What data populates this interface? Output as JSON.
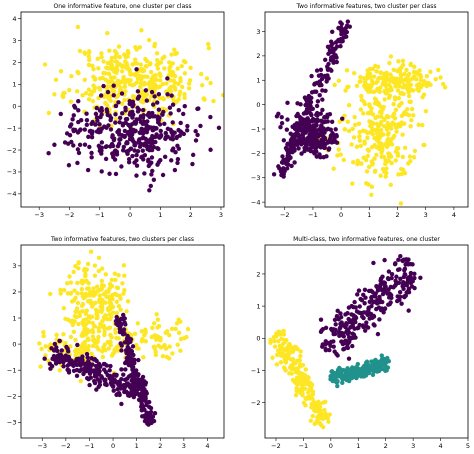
{
  "colors": {
    "dark_purple": "#440154",
    "teal": "#21918c",
    "yellow": "#fde725"
  },
  "chart_data": [
    {
      "type": "scatter",
      "title": "One informative feature, one cluster per class",
      "xlim": [
        -3.6,
        3.1
      ],
      "ylim": [
        -4.6,
        4.3
      ],
      "xticks": [
        -3,
        -2,
        -1,
        0,
        1,
        2,
        3
      ],
      "yticks": [
        -4,
        -3,
        -2,
        -1,
        0,
        1,
        2,
        3,
        4
      ],
      "seed": 11,
      "series": [
        {
          "color": "#fde725",
          "n": 380,
          "clusters": [
            {
              "type": "gauss",
              "cx": 0.15,
              "cy": 1.15,
              "sx": 1.05,
              "sy": 0.85,
              "w": 1
            }
          ]
        },
        {
          "color": "#440154",
          "n": 380,
          "clusters": [
            {
              "type": "gauss",
              "cx": 0.0,
              "cy": -1.1,
              "sx": 0.95,
              "sy": 0.9,
              "w": 1
            }
          ]
        }
      ]
    },
    {
      "type": "scatter",
      "title": "Two informative features, two cluster per class",
      "xlim": [
        -2.7,
        4.5
      ],
      "ylim": [
        -4.2,
        3.8
      ],
      "xticks": [
        -2,
        -1,
        0,
        1,
        2,
        3,
        4
      ],
      "yticks": [
        -4,
        -3,
        -2,
        -1,
        0,
        1,
        2,
        3
      ],
      "seed": 23,
      "series": [
        {
          "color": "#fde725",
          "n": 420,
          "clusters": [
            {
              "type": "gauss",
              "cx": 1.8,
              "cy": 0.9,
              "sx": 0.75,
              "sy": 0.35,
              "w": 0.45
            },
            {
              "type": "gauss",
              "cx": 1.3,
              "cy": -1.3,
              "sx": 0.7,
              "sy": 1.0,
              "w": 0.55
            }
          ]
        },
        {
          "color": "#440154",
          "n": 420,
          "clusters": [
            {
              "type": "line",
              "x0": -2.2,
              "y0": -2.9,
              "x1": 0.2,
              "y1": 3.4,
              "sp": 0.12,
              "w": 0.45
            },
            {
              "type": "gauss",
              "cx": -1.1,
              "cy": -1.2,
              "sx": 0.45,
              "sy": 0.5,
              "w": 0.55
            }
          ]
        }
      ]
    },
    {
      "type": "scatter",
      "title": "Two informative features, two clusters per class",
      "xlim": [
        -3.9,
        4.7
      ],
      "ylim": [
        -3.6,
        3.8
      ],
      "xticks": [
        -3,
        -2,
        -1,
        0,
        1,
        2,
        3,
        4
      ],
      "yticks": [
        -3,
        -2,
        -1,
        0,
        1,
        2,
        3
      ],
      "seed": 37,
      "series": [
        {
          "color": "#fde725",
          "n": 420,
          "clusters": [
            {
              "type": "gauss",
              "cx": -0.8,
              "cy": 1.6,
              "sx": 0.6,
              "sy": 0.8,
              "w": 0.55
            },
            {
              "type": "line",
              "x0": -3.0,
              "y0": -0.4,
              "x1": 3.2,
              "y1": 0.4,
              "sp": 0.35,
              "w": 0.45
            }
          ]
        },
        {
          "color": "#440154",
          "n": 420,
          "clusters": [
            {
              "type": "line",
              "x0": -2.6,
              "y0": -0.3,
              "x1": 1.2,
              "y1": -1.9,
              "sp": 0.22,
              "w": 0.55
            },
            {
              "type": "line",
              "x0": 0.2,
              "y0": 1.1,
              "x1": 1.6,
              "y1": -3.1,
              "sp": 0.12,
              "w": 0.45
            }
          ]
        }
      ]
    },
    {
      "type": "scatter",
      "title": "Multi-class, two informative features, one cluster",
      "xlim": [
        -2.4,
        5.0
      ],
      "ylim": [
        -3.1,
        2.9
      ],
      "xticks": [
        -2,
        -1,
        0,
        1,
        2,
        3,
        4,
        5
      ],
      "yticks": [
        -2,
        -1,
        0,
        1,
        2
      ],
      "seed": 53,
      "series": [
        {
          "color": "#440154",
          "n": 280,
          "clusters": [
            {
              "type": "line",
              "x0": -0.2,
              "y0": -0.3,
              "x1": 3.0,
              "y1": 2.2,
              "sp": 0.32,
              "w": 1
            }
          ]
        },
        {
          "color": "#21918c",
          "n": 220,
          "clusters": [
            {
              "type": "line",
              "x0": 0.0,
              "y0": -1.25,
              "x1": 2.1,
              "y1": -0.8,
              "sp": 0.11,
              "w": 1
            }
          ]
        },
        {
          "color": "#fde725",
          "n": 220,
          "clusters": [
            {
              "type": "line",
              "x0": -2.0,
              "y0": 0.1,
              "x1": -0.2,
              "y1": -2.6,
              "sp": 0.17,
              "w": 1
            }
          ]
        }
      ]
    }
  ]
}
